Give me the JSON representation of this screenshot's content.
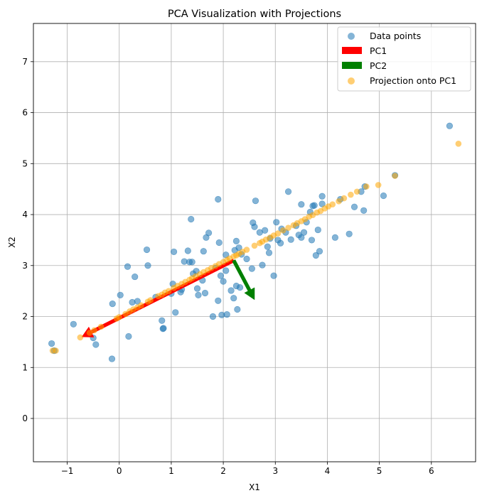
{
  "chart_data": {
    "type": "scatter",
    "title": "PCA Visualization with Projections",
    "xlabel": "X1",
    "ylabel": "X2",
    "xlim": [
      -1.65,
      6.85
    ],
    "ylim": [
      -0.85,
      7.75
    ],
    "xticks": [
      -1,
      0,
      1,
      2,
      3,
      4,
      5,
      6
    ],
    "yticks": [
      0,
      1,
      2,
      3,
      4,
      5,
      6,
      7
    ],
    "xtick_labels": [
      "−1",
      "0",
      "1",
      "2",
      "3",
      "4",
      "5",
      "6"
    ],
    "ytick_labels": [
      "0",
      "1",
      "2",
      "3",
      "4",
      "5",
      "6",
      "7"
    ],
    "grid": true,
    "legend_position": "upper-right",
    "legend": [
      "Data points",
      "PC1",
      "PC2",
      "Projection onto PC1"
    ],
    "colors": {
      "data_points": "#1f77b4",
      "pc1": "#ff0000",
      "pc2": "#008000",
      "projection": "#ffa500"
    },
    "series": [
      {
        "name": "Data points",
        "kind": "scatter",
        "points": [
          [
            -1.3,
            1.47
          ],
          [
            -1.25,
            1.33
          ],
          [
            -0.88,
            1.85
          ],
          [
            -0.5,
            1.58
          ],
          [
            -0.45,
            1.45
          ],
          [
            -0.13,
            2.25
          ],
          [
            -0.14,
            1.17
          ],
          [
            0.02,
            2.42
          ],
          [
            0.16,
            2.98
          ],
          [
            0.18,
            1.61
          ],
          [
            0.25,
            2.28
          ],
          [
            0.3,
            2.78
          ],
          [
            0.35,
            2.3
          ],
          [
            0.53,
            3.31
          ],
          [
            0.55,
            3.0
          ],
          [
            0.7,
            2.38
          ],
          [
            0.82,
            1.92
          ],
          [
            0.84,
            1.76
          ],
          [
            0.85,
            1.77
          ],
          [
            1.0,
            2.45
          ],
          [
            1.03,
            2.64
          ],
          [
            1.05,
            3.27
          ],
          [
            1.08,
            2.08
          ],
          [
            1.18,
            2.48
          ],
          [
            1.2,
            2.53
          ],
          [
            1.25,
            3.08
          ],
          [
            1.32,
            3.29
          ],
          [
            1.35,
            3.07
          ],
          [
            1.38,
            3.91
          ],
          [
            1.4,
            3.07
          ],
          [
            1.42,
            2.84
          ],
          [
            1.48,
            2.89
          ],
          [
            1.5,
            2.55
          ],
          [
            1.52,
            2.42
          ],
          [
            1.6,
            2.71
          ],
          [
            1.62,
            3.28
          ],
          [
            1.65,
            2.46
          ],
          [
            1.67,
            3.55
          ],
          [
            1.72,
            3.64
          ],
          [
            1.8,
            2.0
          ],
          [
            1.85,
            2.95
          ],
          [
            1.9,
            4.3
          ],
          [
            1.9,
            2.31
          ],
          [
            1.92,
            3.45
          ],
          [
            1.95,
            2.8
          ],
          [
            1.97,
            2.03
          ],
          [
            2.0,
            2.69
          ],
          [
            2.05,
            2.9
          ],
          [
            2.05,
            3.21
          ],
          [
            2.07,
            2.04
          ],
          [
            2.15,
            2.51
          ],
          [
            2.2,
            2.36
          ],
          [
            2.22,
            3.3
          ],
          [
            2.25,
            3.48
          ],
          [
            2.25,
            2.6
          ],
          [
            2.27,
            2.14
          ],
          [
            2.3,
            3.35
          ],
          [
            2.32,
            2.57
          ],
          [
            2.35,
            3.22
          ],
          [
            2.45,
            3.13
          ],
          [
            2.55,
            2.94
          ],
          [
            2.57,
            3.84
          ],
          [
            2.6,
            3.76
          ],
          [
            2.62,
            4.27
          ],
          [
            2.7,
            3.65
          ],
          [
            2.75,
            3.01
          ],
          [
            2.8,
            3.69
          ],
          [
            2.85,
            3.37
          ],
          [
            2.88,
            3.25
          ],
          [
            2.9,
            3.53
          ],
          [
            2.97,
            2.8
          ],
          [
            3.02,
            3.85
          ],
          [
            3.05,
            3.5
          ],
          [
            3.1,
            3.44
          ],
          [
            3.12,
            3.72
          ],
          [
            3.2,
            3.65
          ],
          [
            3.25,
            4.45
          ],
          [
            3.3,
            3.51
          ],
          [
            3.4,
            3.78
          ],
          [
            3.45,
            3.6
          ],
          [
            3.5,
            3.55
          ],
          [
            3.5,
            4.2
          ],
          [
            3.55,
            3.65
          ],
          [
            3.6,
            3.85
          ],
          [
            3.67,
            4.05
          ],
          [
            3.7,
            3.5
          ],
          [
            3.72,
            4.17
          ],
          [
            3.75,
            4.18
          ],
          [
            3.78,
            3.2
          ],
          [
            3.82,
            3.7
          ],
          [
            3.85,
            3.28
          ],
          [
            3.9,
            4.21
          ],
          [
            3.9,
            4.36
          ],
          [
            4.15,
            3.55
          ],
          [
            4.25,
            4.3
          ],
          [
            4.42,
            3.62
          ],
          [
            4.52,
            4.15
          ],
          [
            4.65,
            4.45
          ],
          [
            4.7,
            4.08
          ],
          [
            4.72,
            4.55
          ],
          [
            5.08,
            4.37
          ],
          [
            5.3,
            4.77
          ],
          [
            6.35,
            5.74
          ]
        ]
      },
      {
        "name": "Projection onto PC1",
        "kind": "scatter",
        "points": [
          [
            -1.28,
            1.33
          ],
          [
            -1.22,
            1.33
          ],
          [
            -0.75,
            1.59
          ],
          [
            -0.57,
            1.68
          ],
          [
            -0.48,
            1.73
          ],
          [
            -0.35,
            1.8
          ],
          [
            -0.05,
            1.96
          ],
          [
            0.0,
            1.99
          ],
          [
            0.12,
            2.05
          ],
          [
            0.2,
            2.1
          ],
          [
            0.27,
            2.14
          ],
          [
            0.35,
            2.18
          ],
          [
            0.42,
            2.22
          ],
          [
            0.55,
            2.29
          ],
          [
            0.6,
            2.32
          ],
          [
            0.75,
            2.4
          ],
          [
            0.82,
            2.43
          ],
          [
            0.88,
            2.47
          ],
          [
            0.95,
            2.5
          ],
          [
            1.05,
            2.56
          ],
          [
            1.12,
            2.6
          ],
          [
            1.2,
            2.64
          ],
          [
            1.27,
            2.68
          ],
          [
            1.35,
            2.72
          ],
          [
            1.4,
            2.75
          ],
          [
            1.47,
            2.79
          ],
          [
            1.55,
            2.83
          ],
          [
            1.62,
            2.87
          ],
          [
            1.7,
            2.91
          ],
          [
            1.77,
            2.95
          ],
          [
            1.85,
            2.99
          ],
          [
            1.92,
            3.03
          ],
          [
            2.0,
            3.07
          ],
          [
            2.07,
            3.11
          ],
          [
            2.12,
            3.14
          ],
          [
            2.2,
            3.18
          ],
          [
            2.25,
            3.2
          ],
          [
            2.3,
            3.23
          ],
          [
            2.37,
            3.27
          ],
          [
            2.45,
            3.31
          ],
          [
            2.6,
            3.39
          ],
          [
            2.7,
            3.44
          ],
          [
            2.75,
            3.47
          ],
          [
            2.82,
            3.51
          ],
          [
            2.9,
            3.55
          ],
          [
            2.97,
            3.59
          ],
          [
            3.05,
            3.63
          ],
          [
            3.15,
            3.69
          ],
          [
            3.25,
            3.74
          ],
          [
            3.35,
            3.79
          ],
          [
            3.42,
            3.83
          ],
          [
            3.5,
            3.87
          ],
          [
            3.57,
            3.91
          ],
          [
            3.65,
            3.96
          ],
          [
            3.72,
            3.99
          ],
          [
            3.8,
            4.04
          ],
          [
            3.87,
            4.07
          ],
          [
            3.95,
            4.12
          ],
          [
            4.02,
            4.16
          ],
          [
            4.1,
            4.2
          ],
          [
            4.22,
            4.26
          ],
          [
            4.32,
            4.32
          ],
          [
            4.45,
            4.39
          ],
          [
            4.57,
            4.45
          ],
          [
            4.75,
            4.55
          ],
          [
            4.98,
            4.58
          ],
          [
            5.3,
            4.76
          ],
          [
            6.52,
            5.39
          ]
        ]
      }
    ],
    "vectors": [
      {
        "name": "PC1",
        "from": [
          2.2,
          3.1
        ],
        "to": [
          -0.72,
          1.6
        ]
      },
      {
        "name": "PC2",
        "from": [
          2.2,
          3.1
        ],
        "to": [
          2.6,
          2.33
        ]
      }
    ]
  }
}
